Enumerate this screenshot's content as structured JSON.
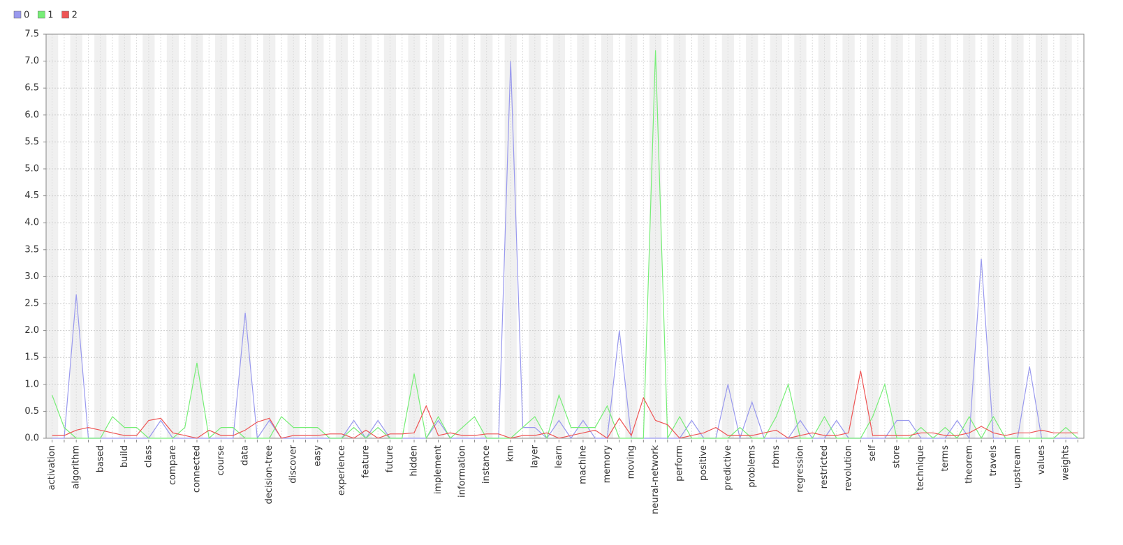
{
  "chart_data": {
    "type": "line",
    "categories": [
      "activation",
      null,
      "algorithm",
      null,
      "based",
      null,
      "build",
      null,
      "class",
      null,
      "compare",
      null,
      "connected",
      null,
      "course",
      null,
      "data",
      null,
      "decision-tree",
      null,
      "discover",
      null,
      "easy",
      null,
      "experience",
      null,
      "feature",
      null,
      "future",
      null,
      "hidden",
      null,
      "implement",
      null,
      "information",
      null,
      "instance",
      null,
      "knn",
      null,
      "layer",
      null,
      "learn",
      null,
      "machine",
      null,
      "memory",
      null,
      "moving",
      null,
      "neural-network",
      null,
      "perform",
      null,
      "positive",
      null,
      "predictive",
      null,
      "problems",
      null,
      "rbms",
      null,
      "regression",
      null,
      "restricted",
      null,
      "revolution",
      null,
      "self",
      null,
      "store",
      null,
      "technique",
      null,
      "terms",
      null,
      "theorem",
      null,
      "travels",
      null,
      "upstream",
      null,
      "values",
      null,
      "weights",
      null
    ],
    "series": [
      {
        "name": "0",
        "color": "#9999ee",
        "values": [
          0,
          0,
          2.67,
          0,
          0,
          0,
          0,
          0,
          0,
          0.33,
          0,
          0,
          0,
          0,
          0,
          0,
          2.33,
          0,
          0.33,
          0,
          0,
          0,
          0,
          0,
          0,
          0.33,
          0,
          0.33,
          0,
          0,
          0,
          0,
          0.33,
          0,
          0,
          0,
          0,
          0,
          7.0,
          0.2,
          0.2,
          0,
          0.33,
          0,
          0.33,
          0,
          0,
          2.0,
          0,
          0,
          0,
          0,
          0,
          0.33,
          0,
          0,
          1.0,
          0,
          0.67,
          0,
          0,
          0,
          0.33,
          0,
          0,
          0.33,
          0,
          0,
          0,
          0,
          0.33,
          0.33,
          0,
          0,
          0,
          0.33,
          0,
          3.33,
          0,
          0,
          0,
          1.33,
          0,
          0,
          0,
          0
        ]
      },
      {
        "name": "1",
        "color": "#77ee77",
        "values": [
          0.8,
          0.2,
          0,
          0,
          0,
          0.4,
          0.2,
          0.2,
          0,
          0,
          0,
          0.2,
          1.4,
          0,
          0.2,
          0.2,
          0,
          0,
          0,
          0.4,
          0.2,
          0.2,
          0.2,
          0,
          0,
          0.2,
          0,
          0.2,
          0,
          0,
          1.2,
          0,
          0.4,
          0,
          0.2,
          0.4,
          0,
          0,
          0,
          0.2,
          0.4,
          0,
          0.8,
          0.2,
          0.2,
          0.2,
          0.6,
          0,
          0,
          0,
          7.2,
          0,
          0.4,
          0,
          0,
          0,
          0,
          0.2,
          0,
          0,
          0.4,
          1.0,
          0,
          0,
          0.4,
          0,
          0,
          0,
          0.4,
          1.0,
          0,
          0,
          0.2,
          0,
          0.2,
          0,
          0.4,
          0,
          0.4,
          0,
          0,
          0,
          0,
          0,
          0.2,
          0
        ]
      },
      {
        "name": "2",
        "color": "#ee5555",
        "values": [
          0.05,
          0.05,
          0.15,
          0.2,
          0.15,
          0.1,
          0.05,
          0.05,
          0.33,
          0.37,
          0.1,
          0.05,
          0,
          0.15,
          0.05,
          0.05,
          0.15,
          0.3,
          0.37,
          0,
          0.05,
          0.05,
          0.05,
          0.08,
          0.08,
          0,
          0.15,
          0,
          0.08,
          0.08,
          0.1,
          0.6,
          0.05,
          0.1,
          0.05,
          0.05,
          0.08,
          0.08,
          0,
          0.05,
          0.05,
          0.1,
          0,
          0.05,
          0.1,
          0.15,
          0,
          0.37,
          0.05,
          0.75,
          0.33,
          0.25,
          0,
          0.05,
          0.1,
          0.2,
          0.05,
          0.05,
          0.05,
          0.1,
          0.15,
          0,
          0.05,
          0.1,
          0.05,
          0.05,
          0.1,
          1.25,
          0.05,
          0.05,
          0.05,
          0.05,
          0.1,
          0.1,
          0.05,
          0.05,
          0.1,
          0.22,
          0.1,
          0.05,
          0.1,
          0.1,
          0.15,
          0.1,
          0.1,
          0.1
        ]
      }
    ],
    "ylim": [
      0,
      7.5
    ],
    "yticks": [
      {
        "value": 0,
        "label": "0.0"
      },
      {
        "value": 0.5,
        "label": "0.5"
      },
      {
        "value": 1,
        "label": "1.0"
      },
      {
        "value": 1.5,
        "label": "1.5"
      },
      {
        "value": 2,
        "label": "2.0"
      },
      {
        "value": 2.5,
        "label": "2.5"
      },
      {
        "value": 3,
        "label": "3.0"
      },
      {
        "value": 3.5,
        "label": "3.5"
      },
      {
        "value": 4,
        "label": "4.0"
      },
      {
        "value": 4.5,
        "label": "4.5"
      },
      {
        "value": 5,
        "label": "5.0"
      },
      {
        "value": 5.5,
        "label": "5.5"
      },
      {
        "value": 6,
        "label": "6.0"
      },
      {
        "value": 6.5,
        "label": "6.5"
      },
      {
        "value": 7,
        "label": "7.0"
      },
      {
        "value": 7.5,
        "label": "7.5"
      }
    ],
    "grid": true,
    "legend": "top-left"
  }
}
